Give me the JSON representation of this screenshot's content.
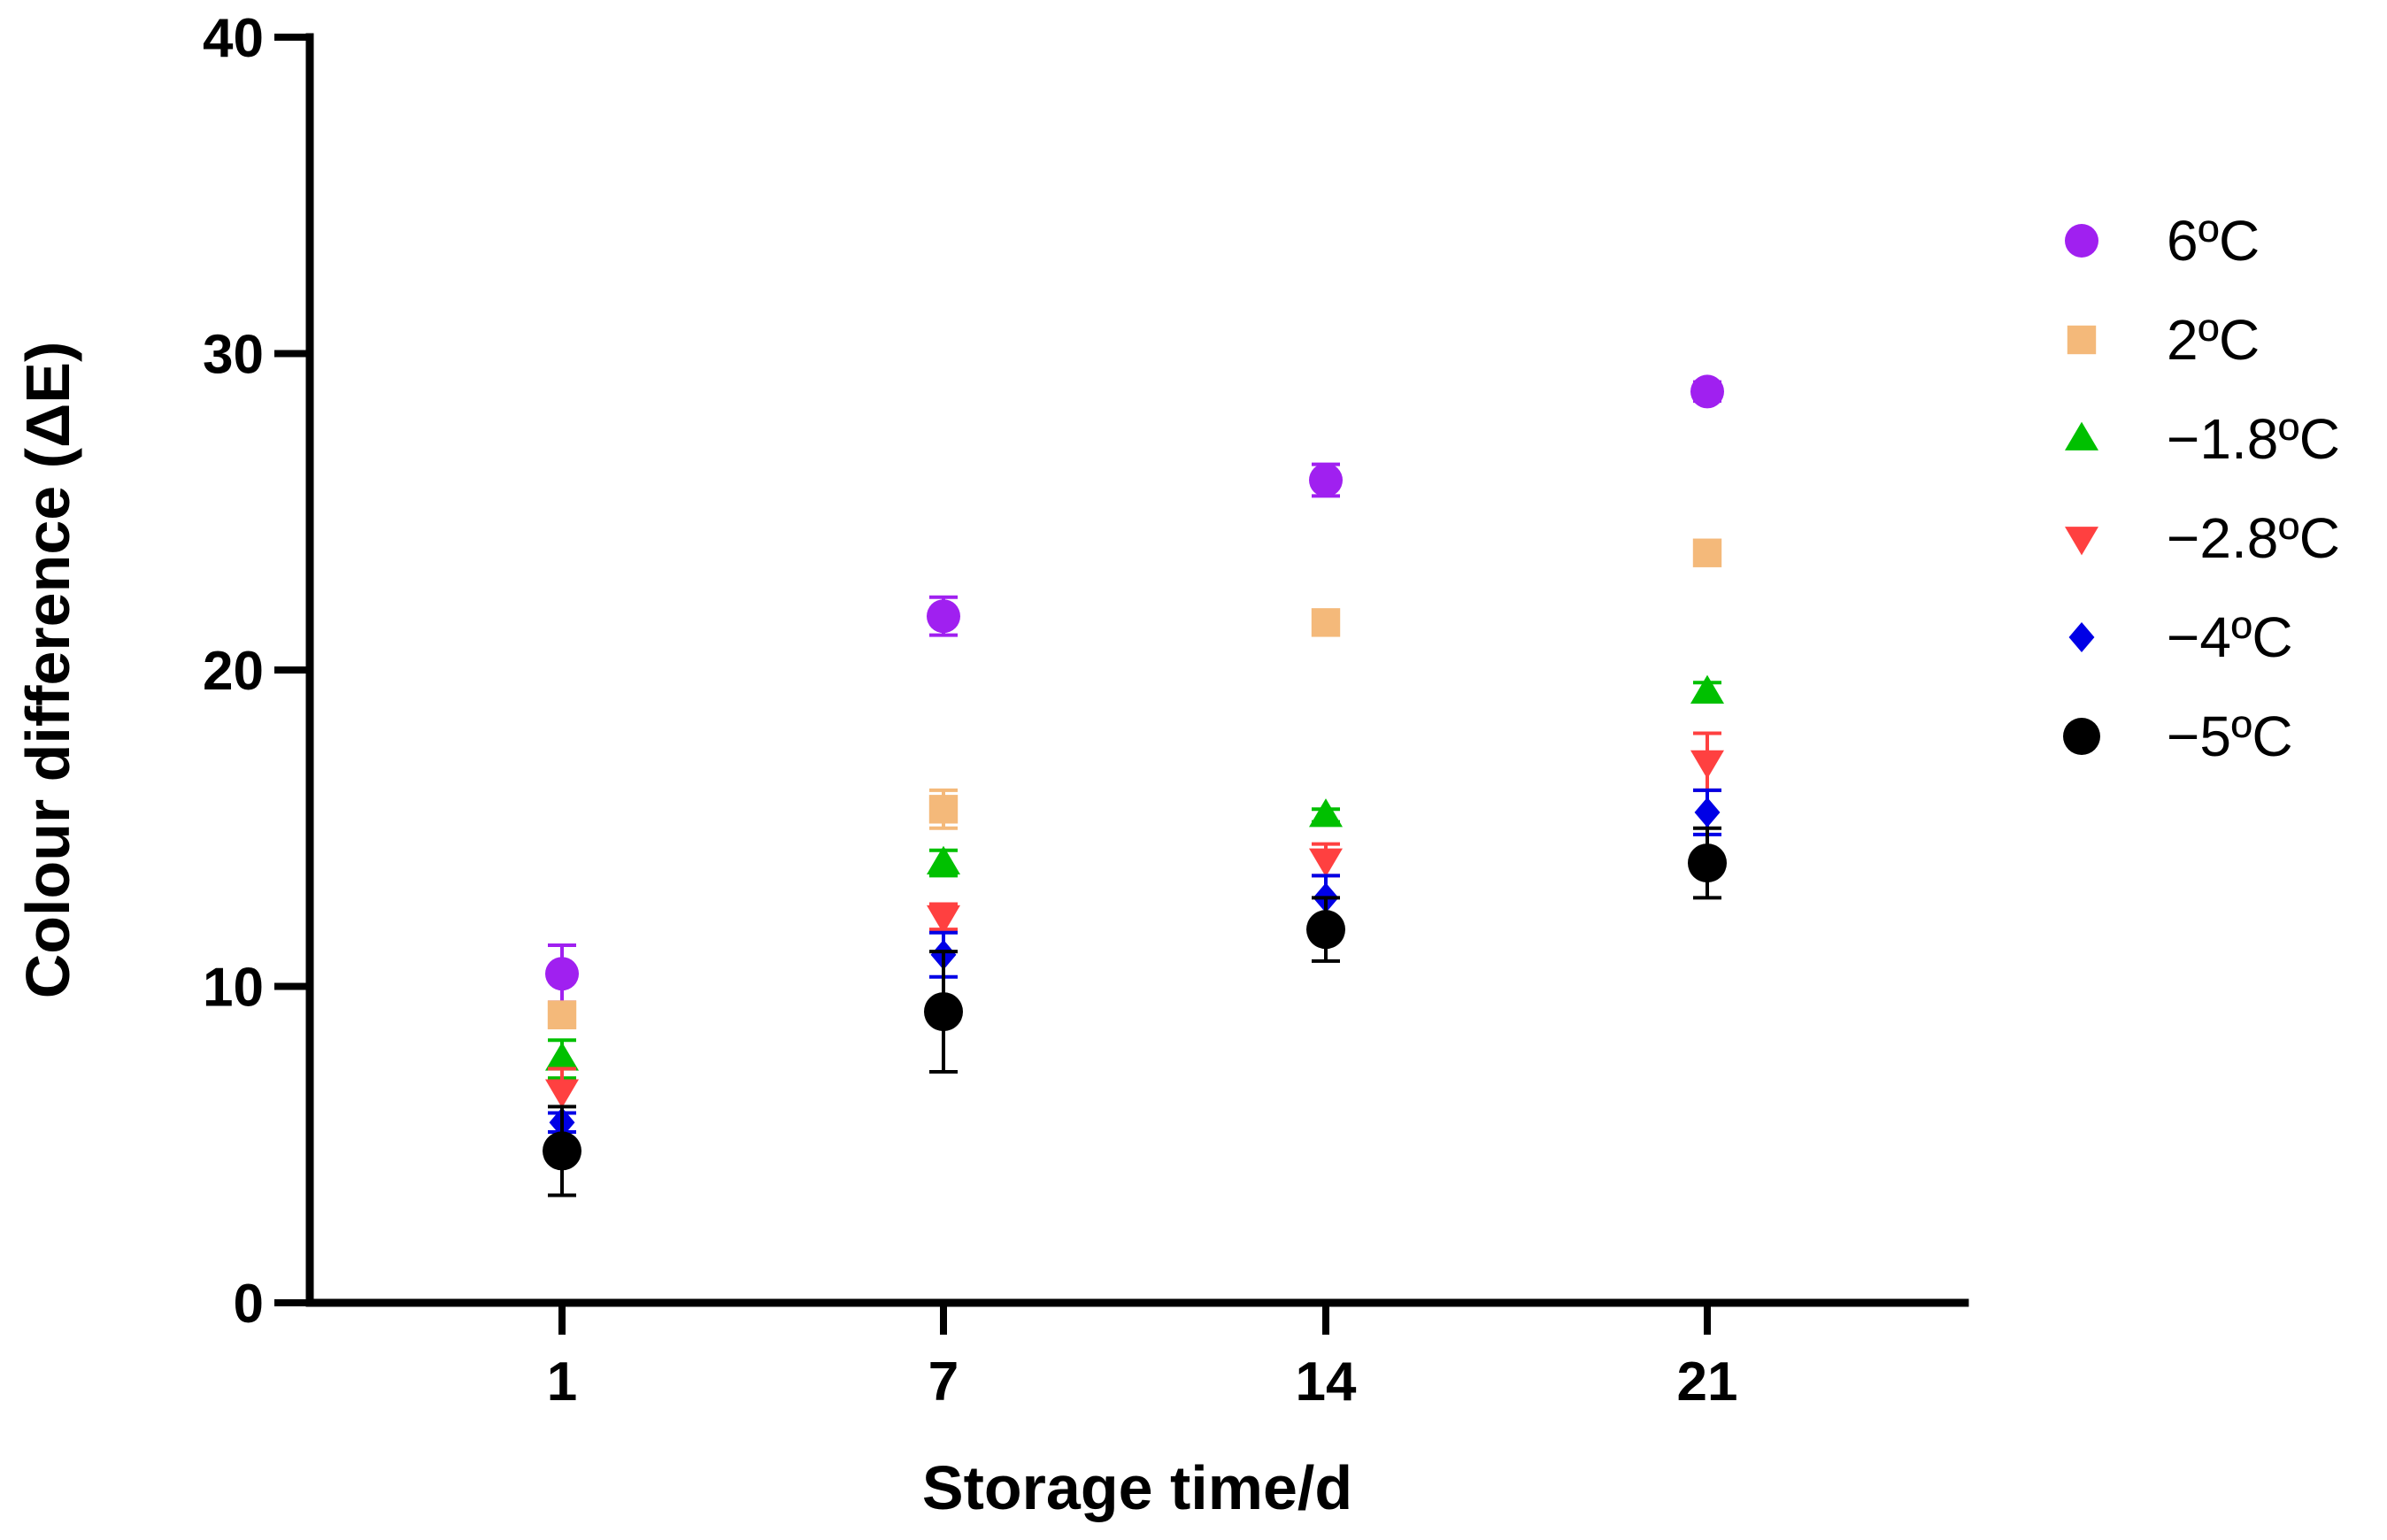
{
  "chart_data": {
    "type": "scatter",
    "title": "",
    "xlabel": "Storage time/d",
    "ylabel": "Colour difference (ΔE)",
    "categories": [
      "1",
      "7",
      "14",
      "21"
    ],
    "ylim": [
      0,
      40
    ],
    "yticks": [
      0,
      10,
      20,
      30,
      40
    ],
    "grid": false,
    "legend_position": "right",
    "error_bars": true,
    "series": [
      {
        "name": "6ºC",
        "marker": "circle",
        "color": "#a020f0",
        "values": [
          10.4,
          21.7,
          26.0,
          28.8
        ],
        "errors": [
          0.9,
          0.6,
          0.5,
          0.3
        ]
      },
      {
        "name": "2ºC",
        "marker": "square",
        "color": "#f4b97a",
        "values": [
          9.1,
          15.6,
          21.5,
          23.7
        ],
        "errors": [
          0.4,
          0.6,
          0.2,
          0.2
        ]
      },
      {
        "name": "−1.8ºC",
        "marker": "triangle-up",
        "color": "#00c000",
        "values": [
          7.7,
          13.9,
          15.4,
          19.3
        ],
        "errors": [
          0.6,
          0.4,
          0.2,
          0.3
        ]
      },
      {
        "name": "−2.8ºC",
        "marker": "triangle-down",
        "color": "#ff4040",
        "values": [
          6.7,
          12.2,
          14.0,
          17.1
        ],
        "errors": [
          0.7,
          0.4,
          0.5,
          0.9
        ]
      },
      {
        "name": "−4ºC",
        "marker": "diamond",
        "color": "#0000e6",
        "values": [
          5.7,
          11.0,
          12.8,
          15.5
        ],
        "errors": [
          0.3,
          0.7,
          0.7,
          0.7
        ]
      },
      {
        "name": "−5ºC",
        "marker": "circle",
        "color": "#000000",
        "values": [
          4.8,
          9.2,
          11.8,
          13.9
        ],
        "errors": [
          1.4,
          1.9,
          1.0,
          1.1
        ]
      }
    ]
  }
}
